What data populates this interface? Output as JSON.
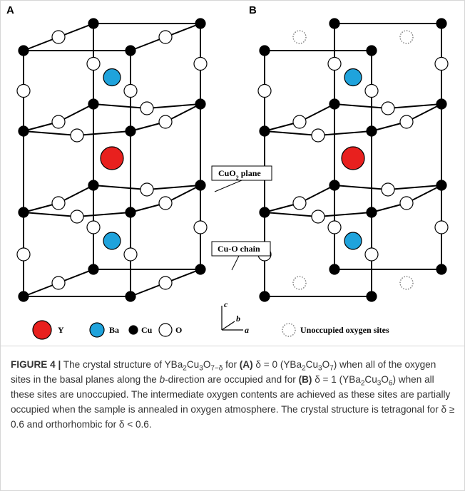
{
  "figure": {
    "panels": [
      "A",
      "B"
    ],
    "callouts": {
      "cuo2_plane": [
        "CuO",
        "2",
        " plane"
      ],
      "cu_o_chain": "Cu-O chain"
    },
    "legend": {
      "y": "Y",
      "ba": "Ba",
      "cu": "Cu",
      "o": "O",
      "unoccupied": "Unoccupied oxygen sites"
    },
    "axes": {
      "c": "c",
      "b": "b",
      "a": "a"
    }
  },
  "caption": {
    "parts": [
      "FIGURE 4 |",
      " The crystal structure of YBa",
      "2",
      "Cu",
      "3",
      "O",
      "7−δ",
      " for ",
      "(A)",
      " δ = 0 (YBa",
      "2",
      "Cu",
      "3",
      "O",
      "7",
      ") when all of the oxygen sites in the basal planes along the ",
      "b",
      "-direction are occupied and for ",
      "(B)",
      " δ = 1 (YBa",
      "2",
      "Cu",
      "3",
      "O",
      "6",
      ") when all these sites are unoccupied. The intermediate oxygen contents are achieved as these sites are partially occupied when the sample is annealed in oxygen atmosphere. The crystal structure is tetragonal for δ ≥ 0.6 and orthorhombic for δ < 0.6."
    ]
  }
}
